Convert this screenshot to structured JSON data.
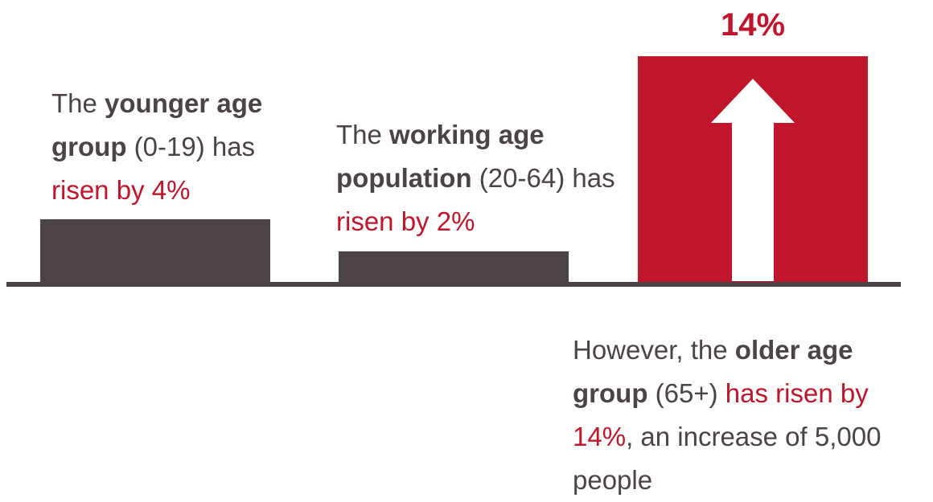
{
  "colors": {
    "neutral_bar": "#4b4344",
    "highlight_bar": "#c0152a",
    "arrow": "#ffffff",
    "baseline": "#4b4344",
    "text": "#4b4344",
    "highlight_text": "#c0152a"
  },
  "chart_data": {
    "type": "bar",
    "categories": [
      "0-19",
      "20-64",
      "65+"
    ],
    "values": [
      4,
      2,
      14
    ],
    "ylim": [
      0,
      14
    ],
    "grid": false,
    "highlight_label": "14%"
  },
  "captions": {
    "young": {
      "pre": "The ",
      "bold": "younger age group",
      "mid": " (0-19) has ",
      "hl": "risen by 4%"
    },
    "working": {
      "pre": "The ",
      "bold": "working age population",
      "mid": " (20-64) has ",
      "hl": "risen by 2%"
    },
    "older": {
      "pre": "However, the ",
      "bold": "older age group",
      "mid": " (65+) ",
      "hl": "has risen by 14%",
      "post": ", an increase of 5,000 people"
    }
  }
}
